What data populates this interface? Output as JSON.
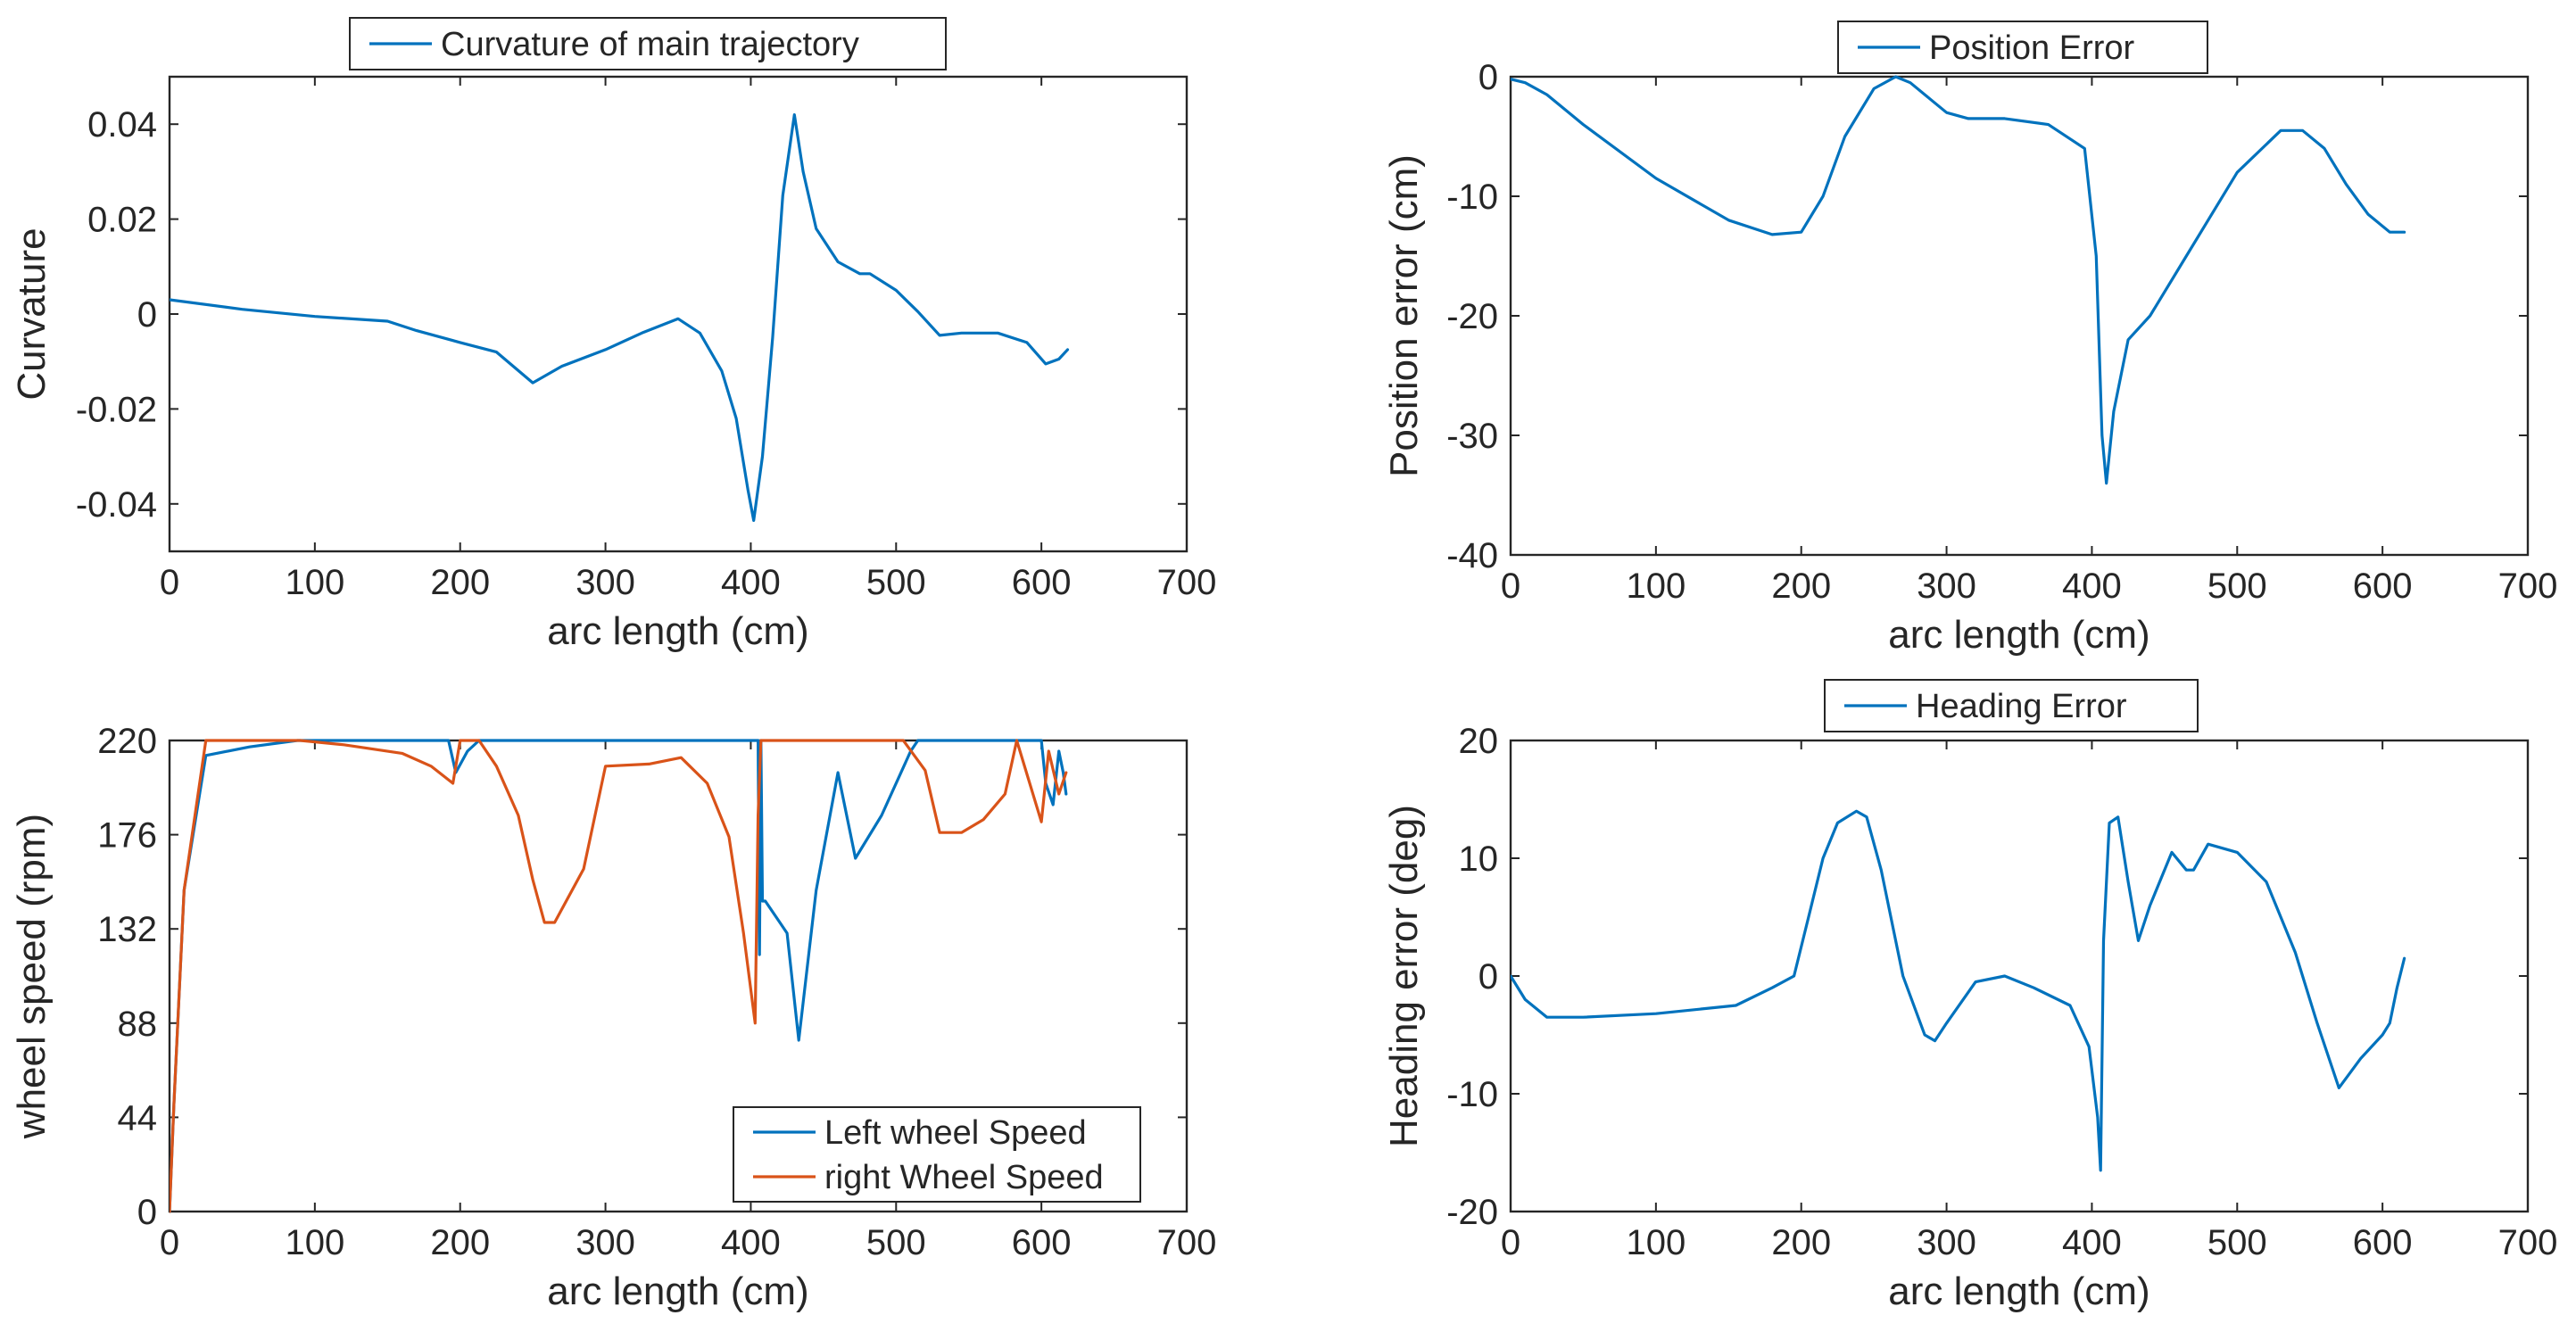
{
  "colors": {
    "blue": "#0072BD",
    "orange": "#D95319",
    "axis": "#262626"
  },
  "chart_data": [
    {
      "id": "curvature",
      "type": "line",
      "xlabel": "arc length (cm)",
      "ylabel": "Curvature",
      "xlim": [
        0,
        700
      ],
      "ylim": [
        -0.05,
        0.05
      ],
      "xticks": [
        0,
        100,
        200,
        300,
        400,
        500,
        600,
        700
      ],
      "xtick_labels": [
        "0",
        "100",
        "200",
        "300",
        "400",
        "500",
        "600",
        "700"
      ],
      "yticks": [
        -0.04,
        -0.02,
        0,
        0.02,
        0.04
      ],
      "ytick_labels": [
        "-0.04",
        "-0.02",
        "0",
        "0.02",
        "0.04"
      ],
      "legend_position": "top-center",
      "series": [
        {
          "name": "Curvature of main trajectory",
          "color": "#0072BD",
          "x": [
            0,
            50,
            100,
            150,
            170,
            200,
            225,
            250,
            270,
            300,
            325,
            350,
            365,
            380,
            390,
            398,
            402,
            408,
            415,
            422,
            430,
            436,
            445,
            460,
            475,
            482,
            500,
            515,
            530,
            545,
            570,
            590,
            603,
            612,
            618
          ],
          "y": [
            0.003,
            0.001,
            -0.0005,
            -0.0015,
            -0.0035,
            -0.006,
            -0.008,
            -0.0145,
            -0.011,
            -0.0075,
            -0.004,
            -0.001,
            -0.004,
            -0.012,
            -0.022,
            -0.037,
            -0.0435,
            -0.03,
            -0.005,
            0.025,
            0.042,
            0.03,
            0.018,
            0.011,
            0.0085,
            0.0085,
            0.005,
            0.0005,
            -0.0045,
            -0.004,
            -0.004,
            -0.006,
            -0.0105,
            -0.0095,
            -0.0075
          ]
        }
      ]
    },
    {
      "id": "position-error",
      "type": "line",
      "xlabel": "arc length (cm)",
      "ylabel": "Position error (cm)",
      "xlim": [
        0,
        700
      ],
      "ylim": [
        -40,
        0
      ],
      "xticks": [
        0,
        100,
        200,
        300,
        400,
        500,
        600,
        700
      ],
      "xtick_labels": [
        "0",
        "100",
        "200",
        "300",
        "400",
        "500",
        "600",
        "700"
      ],
      "yticks": [
        -40,
        -30,
        -20,
        -10,
        0
      ],
      "ytick_labels": [
        "-40",
        "-30",
        "-20",
        "-10",
        "0"
      ],
      "legend_position": "top-center",
      "series": [
        {
          "name": "Position Error",
          "color": "#0072BD",
          "x": [
            0,
            10,
            25,
            50,
            100,
            150,
            180,
            200,
            215,
            230,
            250,
            265,
            275,
            290,
            300,
            315,
            340,
            370,
            395,
            403,
            407,
            410,
            415,
            425,
            440,
            465,
            500,
            530,
            545,
            560,
            575,
            590,
            605,
            615
          ],
          "y": [
            -0.2,
            -0.5,
            -1.5,
            -4,
            -8.5,
            -12,
            -13.2,
            -13,
            -10,
            -5,
            -1,
            0,
            -0.5,
            -2,
            -3,
            -3.5,
            -3.5,
            -4,
            -6,
            -15,
            -30,
            -34,
            -28,
            -22,
            -20,
            -15,
            -8,
            -4.5,
            -4.5,
            -6,
            -9,
            -11.5,
            -13,
            -13
          ]
        }
      ]
    },
    {
      "id": "wheel-speed",
      "type": "line",
      "xlabel": "arc length (cm)",
      "ylabel": "wheel speed (rpm)",
      "xlim": [
        0,
        700
      ],
      "ylim": [
        0,
        220
      ],
      "xticks": [
        0,
        100,
        200,
        300,
        400,
        500,
        600,
        700
      ],
      "xtick_labels": [
        "0",
        "100",
        "200",
        "300",
        "400",
        "500",
        "600",
        "700"
      ],
      "yticks": [
        0,
        44,
        88,
        132,
        176,
        220
      ],
      "ytick_labels": [
        "0",
        "44",
        "88",
        "132",
        "176",
        "220"
      ],
      "legend_position": "bottom-right",
      "series": [
        {
          "name": "Left wheel Speed",
          "color": "#0072BD",
          "x": [
            0,
            3,
            10,
            25,
            55,
            88,
            90,
            192,
            197,
            205,
            213,
            405,
            406,
            407,
            408,
            410,
            420,
            425,
            433,
            445,
            460,
            472,
            490,
            510,
            515,
            600,
            603,
            608,
            612,
            615,
            617
          ],
          "y": [
            0,
            50,
            150,
            213,
            217,
            220,
            220,
            220,
            205,
            215,
            220,
            220,
            120,
            220,
            145,
            145,
            135,
            130,
            80,
            150,
            205,
            165,
            185,
            215,
            220,
            220,
            200,
            190,
            215,
            205,
            195
          ]
        },
        {
          "name": "right Wheel Speed",
          "color": "#D95319",
          "x": [
            0,
            3,
            10,
            25,
            90,
            120,
            160,
            180,
            195,
            200,
            210,
            213,
            225,
            240,
            250,
            258,
            265,
            285,
            300,
            330,
            352,
            370,
            385,
            395,
            403,
            405,
            407,
            412,
            505,
            520,
            530,
            545,
            560,
            575,
            583,
            600,
            605,
            612,
            617
          ],
          "y": [
            0,
            50,
            150,
            220,
            220,
            218,
            214,
            208,
            200,
            220,
            220,
            220,
            208,
            185,
            155,
            135,
            135,
            160,
            208,
            209,
            212,
            200,
            175,
            130,
            88,
            185,
            220,
            220,
            220,
            206,
            177,
            177,
            183,
            195,
            220,
            182,
            215,
            195,
            205
          ]
        }
      ]
    },
    {
      "id": "heading-error",
      "type": "line",
      "xlabel": "arc length (cm)",
      "ylabel": "Heading error (deg)",
      "xlim": [
        0,
        700
      ],
      "ylim": [
        -20,
        20
      ],
      "xticks": [
        0,
        100,
        200,
        300,
        400,
        500,
        600,
        700
      ],
      "xtick_labels": [
        "0",
        "100",
        "200",
        "300",
        "400",
        "500",
        "600",
        "700"
      ],
      "yticks": [
        -20,
        -10,
        0,
        10,
        20
      ],
      "ytick_labels": [
        "-20",
        "-10",
        "0",
        "10",
        "20"
      ],
      "legend_position": "top-center",
      "series": [
        {
          "name": "Heading Error",
          "color": "#0072BD",
          "x": [
            0,
            10,
            25,
            50,
            100,
            155,
            180,
            195,
            205,
            215,
            225,
            238,
            245,
            255,
            270,
            285,
            292,
            300,
            320,
            340,
            360,
            385,
            398,
            404,
            406,
            408,
            412,
            418,
            425,
            432,
            440,
            455,
            465,
            470,
            480,
            500,
            520,
            540,
            555,
            570,
            585,
            600,
            605,
            610,
            615
          ],
          "y": [
            0,
            -2,
            -3.5,
            -3.5,
            -3.2,
            -2.5,
            -1,
            0,
            5,
            10,
            13,
            14,
            13.5,
            9,
            0,
            -5,
            -5.5,
            -4,
            -0.5,
            0,
            -1,
            -2.5,
            -6,
            -12,
            -16.5,
            3,
            13,
            13.5,
            8,
            3,
            6,
            10.5,
            9,
            9,
            11.2,
            10.5,
            8,
            2,
            -4,
            -9.5,
            -7,
            -5,
            -4,
            -1,
            1.5
          ]
        }
      ]
    }
  ]
}
